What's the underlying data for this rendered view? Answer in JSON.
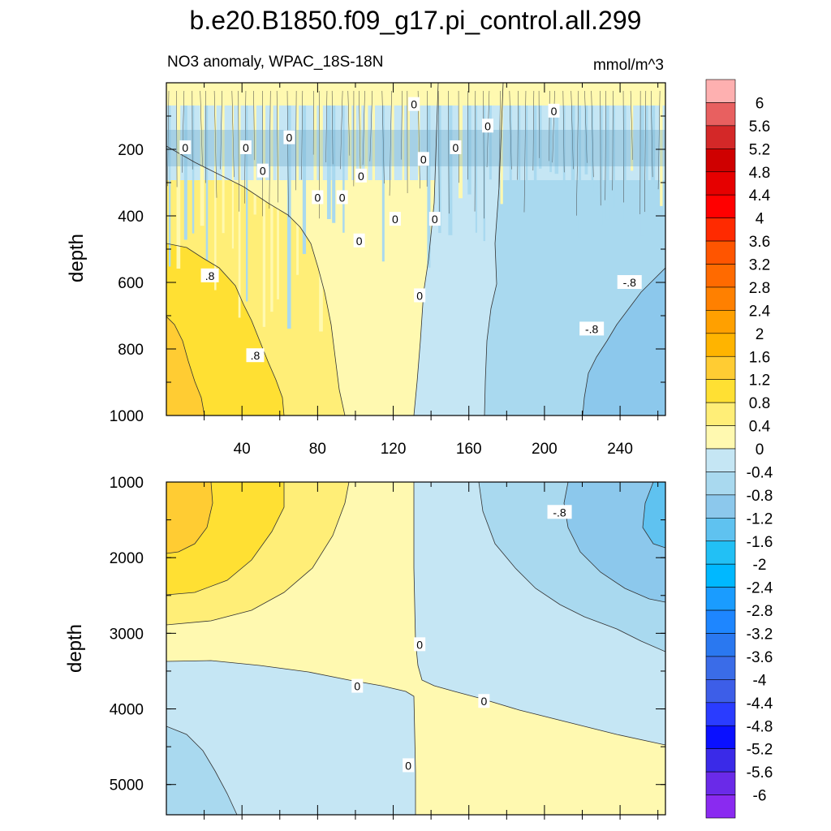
{
  "chart_data": {
    "title": "b.e20.B1850.f09_g17.pi_control.all.299",
    "subtitle_left": "NO3 anomaly, WPAC_18S-18N",
    "subtitle_right": "mmol/m^3",
    "panels": [
      {
        "type": "contour",
        "name": "upper",
        "ylabel": "depth",
        "xlim": [
          0,
          264
        ],
        "ylim": [
          1000,
          0
        ],
        "x_ticks": [
          40,
          80,
          120,
          160,
          200,
          240
        ],
        "x_tick_labels": [
          "40",
          "80",
          "120",
          "160",
          "200",
          "240"
        ],
        "y_ticks": [
          200,
          400,
          600,
          800,
          1000
        ],
        "y_tick_labels": [
          "200",
          "400",
          "600",
          "800",
          "1000"
        ],
        "contour_labels": [
          {
            "text": "0",
            "x": 10,
            "y": 195
          },
          {
            "text": "0",
            "x": 42,
            "y": 195
          },
          {
            "text": "0",
            "x": 65,
            "y": 165
          },
          {
            "text": "0",
            "x": 51,
            "y": 265
          },
          {
            "text": "0",
            "x": 103,
            "y": 280
          },
          {
            "text": "0",
            "x": 136,
            "y": 230
          },
          {
            "text": "0",
            "x": 131,
            "y": 65
          },
          {
            "text": "0",
            "x": 170,
            "y": 130
          },
          {
            "text": "0",
            "x": 153,
            "y": 195
          },
          {
            "text": "0",
            "x": 205,
            "y": 85
          },
          {
            "text": "0",
            "x": 80,
            "y": 345
          },
          {
            "text": "0",
            "x": 93,
            "y": 345
          },
          {
            "text": "0",
            "x": 121,
            "y": 410
          },
          {
            "text": "0",
            "x": 142,
            "y": 410
          },
          {
            "text": "0",
            "x": 102,
            "y": 475
          },
          {
            "text": "0",
            "x": 134,
            "y": 640
          },
          {
            "text": ".8",
            "x": 23,
            "y": 580
          },
          {
            "text": ".8",
            "x": 47,
            "y": 820
          },
          {
            "text": "-.8",
            "x": 245,
            "y": 600
          },
          {
            "text": "-.8",
            "x": 225,
            "y": 740
          }
        ]
      },
      {
        "type": "contour",
        "name": "lower",
        "ylabel": "depth",
        "xlim": [
          0,
          264
        ],
        "ylim": [
          5400,
          1000
        ],
        "y_ticks": [
          1000,
          2000,
          3000,
          4000,
          5000
        ],
        "y_tick_labels": [
          "1000",
          "2000",
          "3000",
          "4000",
          "5000"
        ],
        "contour_labels": [
          {
            "text": "-.8",
            "x": 208,
            "y": 1400
          },
          {
            "text": "0",
            "x": 134,
            "y": 3150
          },
          {
            "text": "0",
            "x": 101,
            "y": 3700
          },
          {
            "text": "0",
            "x": 168,
            "y": 3900
          },
          {
            "text": "0",
            "x": 128,
            "y": 4750
          }
        ]
      }
    ],
    "colorbar": {
      "levels": [
        "6",
        "5.6",
        "5.2",
        "4.8",
        "4.4",
        "4",
        "3.6",
        "3.2",
        "2.8",
        "2.4",
        "2",
        "1.6",
        "1.2",
        "0.8",
        "0.4",
        "0",
        "-0.4",
        "-0.8",
        "-1.2",
        "-1.6",
        "-2",
        "-2.4",
        "-2.8",
        "-3.2",
        "-3.6",
        "-4",
        "-4.4",
        "-4.8",
        "-5.2",
        "-5.6",
        "-6"
      ],
      "colors": [
        "#feb0b0",
        "#e86060",
        "#d42828",
        "#cf0000",
        "#e60000",
        "#ff0000",
        "#ff2a00",
        "#ff5500",
        "#ff6a00",
        "#ff8000",
        "#ffa000",
        "#ffb400",
        "#ffcc33",
        "#ffe033",
        "#ffee77",
        "#fff9b0",
        "#c5e6f4",
        "#a9d9ef",
        "#8cc8ec",
        "#5fc2f0",
        "#22c0f5",
        "#00b8ff",
        "#1a9cff",
        "#1e86ff",
        "#2a78f0",
        "#3a6ce8",
        "#3d5ee8",
        "#2a3cff",
        "#0a10ff",
        "#3a2ae8",
        "#6a2ae8",
        "#8a2af0"
      ]
    }
  }
}
